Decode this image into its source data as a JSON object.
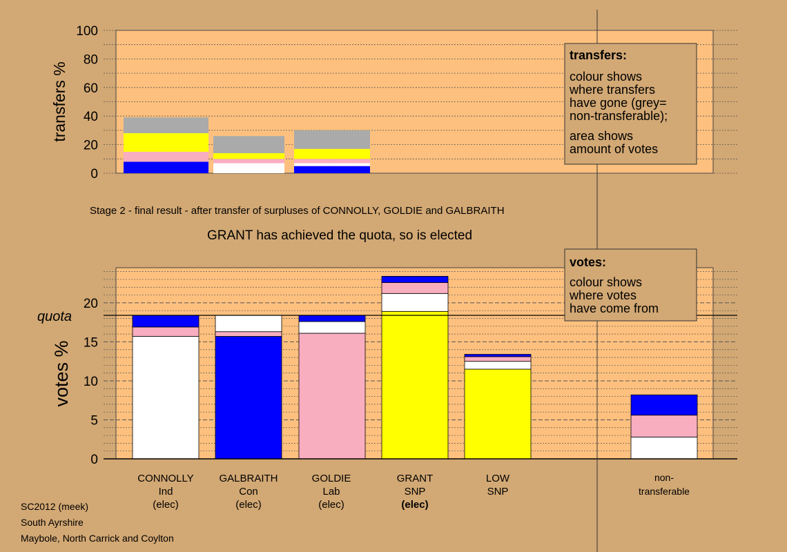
{
  "colors": {
    "background": "#d2a874",
    "plot_area": "#fdc07e",
    "legend_box": "#d2a874",
    "Con": "#0000ff",
    "Lab": "#f9aec0",
    "SNP": "#ffff00",
    "Ind": "#ffffff",
    "non_transferable": "#aaaaaa"
  },
  "stage_title": "Stage 2 - final result - after transfer of surpluses of CONNOLLY, GOLDIE and GALBRAITH",
  "elected_message": "GRANT has achieved the quota, so is elected",
  "transfers_legend": {
    "heading": "transfers:",
    "lines": [
      "colour shows",
      "where transfers",
      "have gone (grey=",
      "non-transferable);"
    ],
    "lines2": [
      "area shows",
      "amount of votes"
    ]
  },
  "votes_legend": {
    "heading": "votes:",
    "lines": [
      "colour shows",
      "where votes",
      "have come from"
    ]
  },
  "quota_label": "quota",
  "candidates": [
    {
      "name": "CONNOLLY",
      "party": "Ind",
      "status": "(elec)",
      "bold_status": false
    },
    {
      "name": "GALBRAITH",
      "party": "Con",
      "status": "(elec)",
      "bold_status": false
    },
    {
      "name": "GOLDIE",
      "party": "Lab",
      "status": "(elec)",
      "bold_status": false
    },
    {
      "name": "GRANT",
      "party": "SNP",
      "status": "(elec)",
      "bold_status": true
    },
    {
      "name": "LOW",
      "party": "SNP",
      "status": "",
      "bold_status": false
    }
  ],
  "nontransferable_label": [
    "non-",
    "transferable"
  ],
  "footer": {
    "line1": "SC2012 (meek)",
    "line2": "South Ayrshire",
    "line3": "Maybole, North Carrick and Coylton"
  },
  "chart_data": [
    {
      "type": "bar",
      "stacked": true,
      "ylabel": "transfers %",
      "ylim": [
        0,
        100
      ],
      "yticks": [
        0,
        20,
        40,
        60,
        80,
        100
      ],
      "categories": [
        "CONNOLLY",
        "GALBRAITH",
        "GOLDIE"
      ],
      "series": [
        {
          "color_key": "Con",
          "values": [
            8,
            0,
            5
          ]
        },
        {
          "color_key": "Ind",
          "values": [
            0,
            7,
            2
          ]
        },
        {
          "color_key": "Lab",
          "values": [
            7,
            3,
            3
          ]
        },
        {
          "color_key": "SNP",
          "values": [
            13,
            4,
            7
          ]
        },
        {
          "color_key": "non_transferable",
          "values": [
            11,
            12,
            13
          ]
        }
      ]
    },
    {
      "type": "bar",
      "stacked": true,
      "ylabel": "votes %",
      "ylim": [
        0,
        24.5
      ],
      "yticks": [
        0,
        5,
        10,
        15,
        20
      ],
      "quota": 18.4,
      "categories": [
        "CONNOLLY",
        "GALBRAITH",
        "GOLDIE",
        "GRANT",
        "LOW",
        "non-transferable"
      ],
      "series": [
        {
          "color_key": "SNP",
          "values": [
            0,
            0,
            0,
            18.9,
            11.5,
            0
          ]
        },
        {
          "color_key": "Ind",
          "values": [
            15.7,
            0,
            0,
            2.3,
            1.0,
            2.8
          ]
        },
        {
          "color_key": "Con",
          "values": [
            0,
            15.7,
            0,
            0,
            0,
            0
          ]
        },
        {
          "color_key": "Lab",
          "values": [
            1.2,
            0.6,
            16.1,
            1.4,
            0.6,
            2.8
          ]
        },
        {
          "color_key": "Ind",
          "values": [
            0,
            2.1,
            1.5,
            0,
            0,
            0
          ]
        },
        {
          "color_key": "Con",
          "values": [
            1.5,
            0,
            0.8,
            0.8,
            0.3,
            2.6
          ]
        }
      ]
    }
  ]
}
